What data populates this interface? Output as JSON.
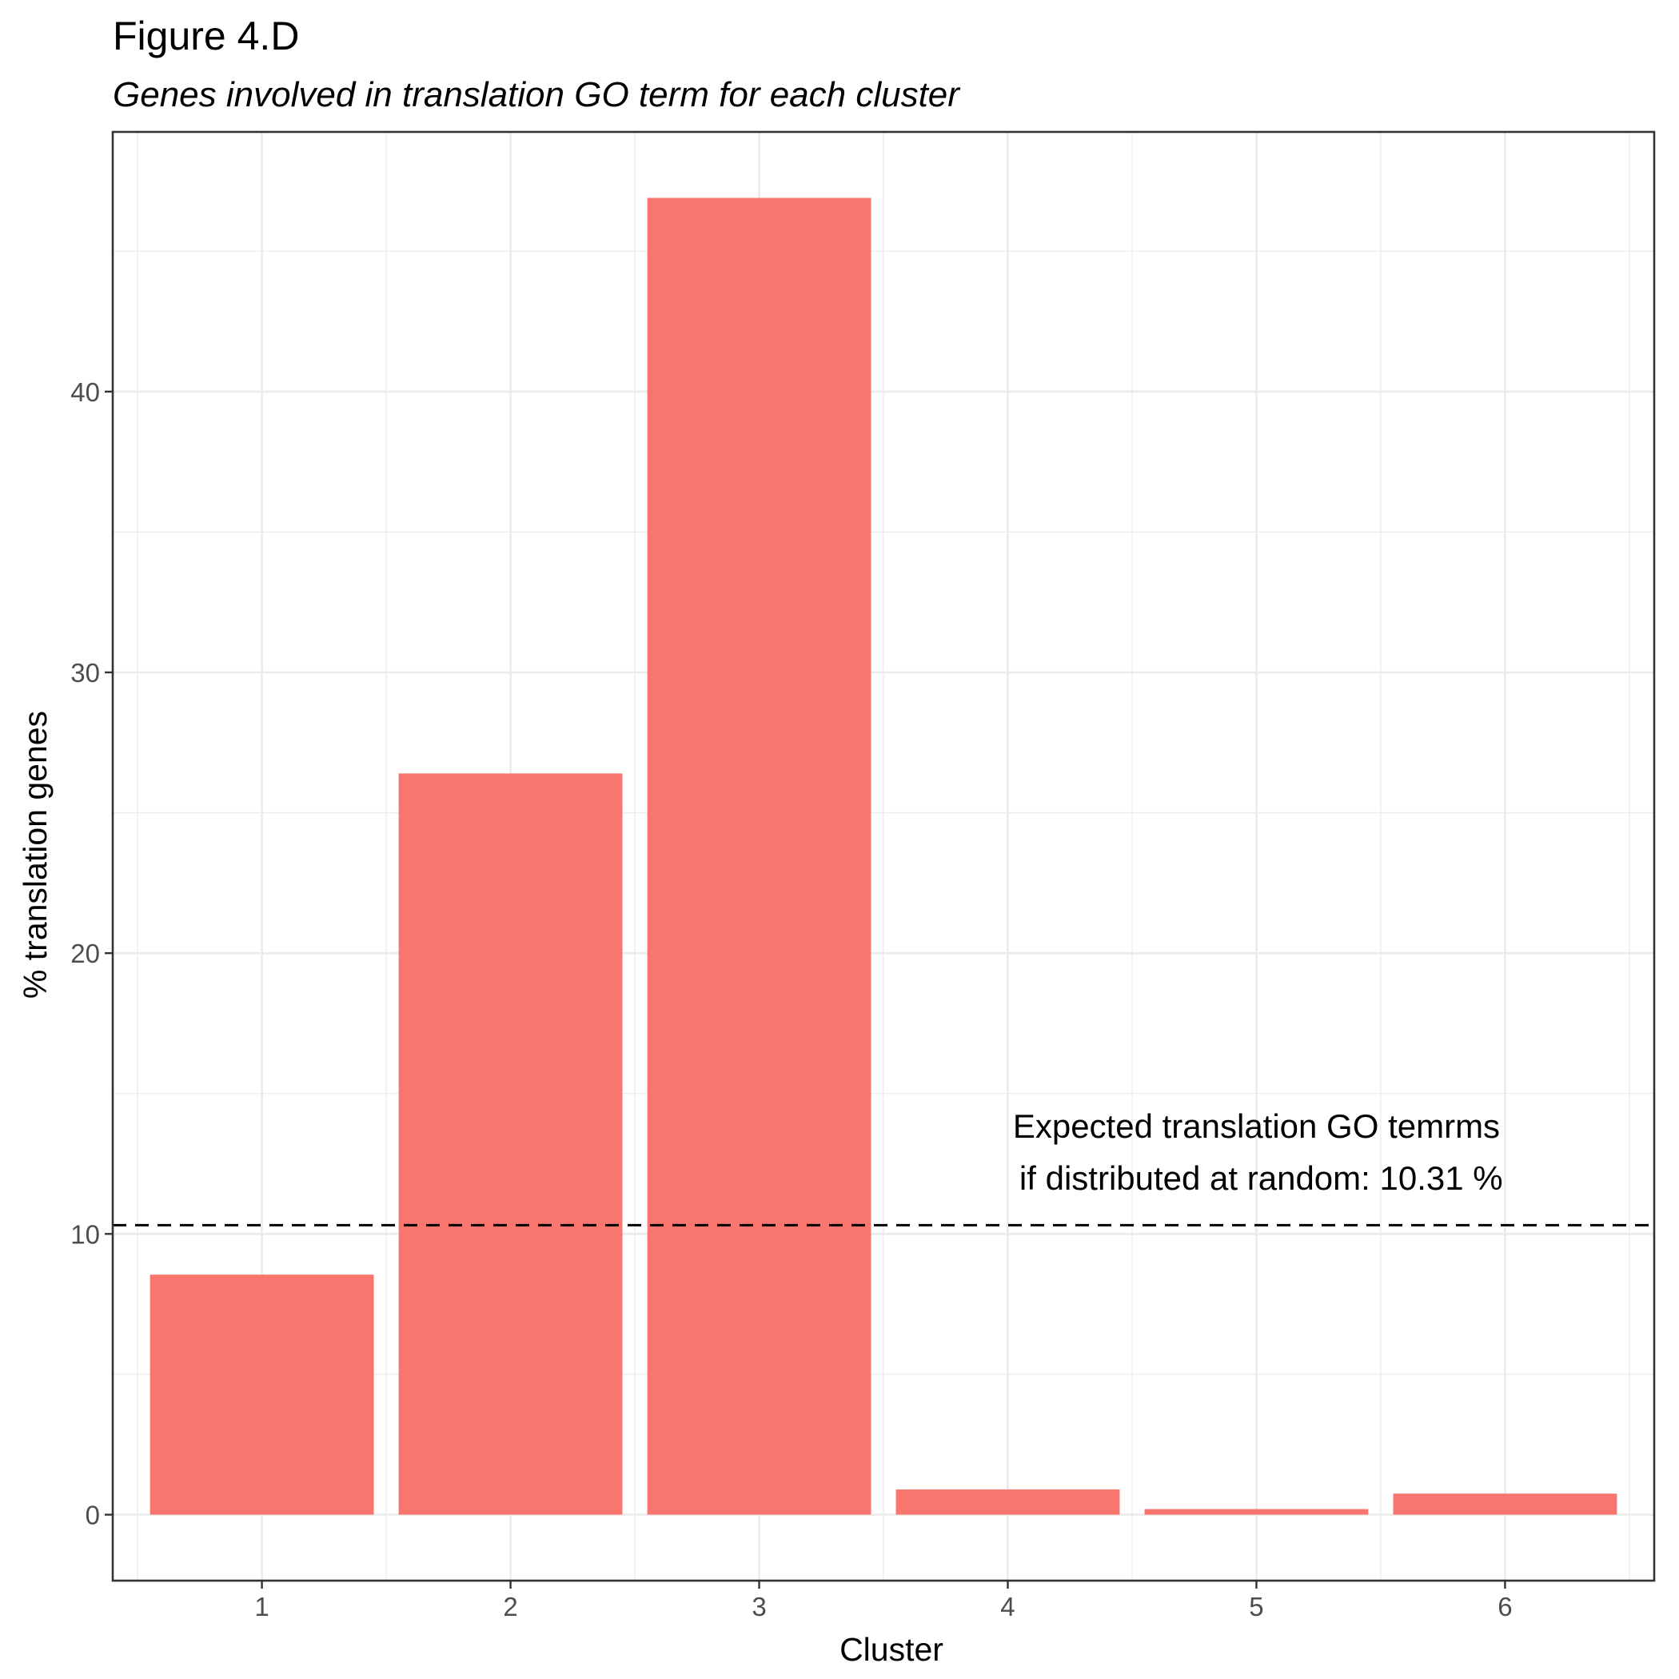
{
  "chart_data": {
    "type": "bar",
    "title": "Figure 4.D",
    "subtitle": "Genes involved in translation GO term for each cluster",
    "xlabel": "Cluster",
    "ylabel": "% translation genes",
    "categories": [
      "1",
      "2",
      "3",
      "4",
      "5",
      "6"
    ],
    "values": [
      8.55,
      26.4,
      46.9,
      0.9,
      0.2,
      0.75
    ],
    "ylim": [
      -2.35,
      49.25
    ],
    "yticks": [
      0,
      10,
      20,
      30,
      40
    ],
    "bar_color": "#f8766d",
    "reference_line": {
      "value": 10.31,
      "style": "dashed"
    },
    "annotation": {
      "line1": "Expected translation GO temrms",
      "line2": " if distributed at random: 10.31 %"
    },
    "grid": true
  }
}
